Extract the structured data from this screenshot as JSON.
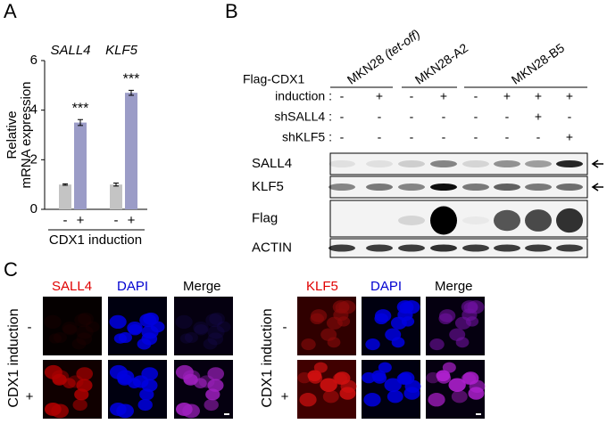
{
  "panel_labels": [
    "A",
    "B",
    "C"
  ],
  "chart_data": {
    "type": "bar",
    "ylabel": [
      "Relative",
      "mRNA expression"
    ],
    "xlabel": "CDX1 induction",
    "categories": [
      "SALL4",
      "KLF5"
    ],
    "series": [
      {
        "name": "-",
        "color": "#c4c4c4",
        "values": [
          1.0,
          1.0
        ],
        "errors": [
          0.03,
          0.06
        ]
      },
      {
        "name": "+",
        "color": "#9b9cc7",
        "values": [
          3.5,
          4.7
        ],
        "errors": [
          0.12,
          0.1
        ]
      }
    ],
    "significance": [
      "***",
      "***"
    ],
    "ylim": [
      0,
      6
    ],
    "yticks": [
      0,
      2,
      4,
      6
    ]
  },
  "blot": {
    "cell_lines": [
      {
        "text": "MKN28",
        "note": "(tet-off)"
      },
      {
        "text": "MKN28-A2"
      },
      {
        "text": "MKN28-B5"
      }
    ],
    "condition_title": "Flag-CDX1",
    "conditions": [
      {
        "label": "induction :",
        "signs": [
          "-",
          "+",
          "-",
          "+",
          "-",
          "+",
          "+",
          "+"
        ]
      },
      {
        "label": "shSALL4 :",
        "signs": [
          "-",
          "-",
          "-",
          "-",
          "-",
          "-",
          "+",
          "-"
        ]
      },
      {
        "label": "shKLF5 :",
        "signs": [
          "-",
          "-",
          "-",
          "-",
          "-",
          "-",
          "-",
          "+"
        ]
      }
    ],
    "rows": [
      "SALL4",
      "KLF5",
      "Flag",
      "ACTIN"
    ]
  },
  "imaging": [
    {
      "headers": [
        "SALL4",
        "DAPI",
        "Merge"
      ],
      "side_label": "CDX1 induction",
      "row_labels": [
        "-",
        "+"
      ]
    },
    {
      "headers": [
        "KLF5",
        "DAPI",
        "Merge"
      ],
      "side_label": "CDX1 induction",
      "row_labels": [
        "-",
        "+"
      ]
    }
  ]
}
